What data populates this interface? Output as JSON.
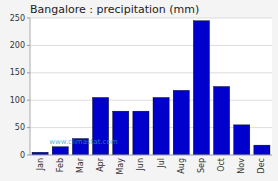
{
  "chart_data": {
    "type": "bar",
    "title": "Bangalore : precipitation (mm)",
    "categories": [
      "Jan",
      "Feb",
      "Mar",
      "Apr",
      "May",
      "Jun",
      "Jul",
      "Aug",
      "Sep",
      "Oct",
      "Nov",
      "Dec"
    ],
    "values": [
      5,
      15,
      30,
      105,
      80,
      80,
      105,
      118,
      245,
      125,
      55,
      18
    ],
    "color": "#0000CC",
    "ylim": [
      0,
      250
    ],
    "yticks": [
      0,
      50,
      100,
      150,
      200,
      250
    ],
    "grid": true,
    "annotations": [
      "www.climastat.com"
    ]
  }
}
